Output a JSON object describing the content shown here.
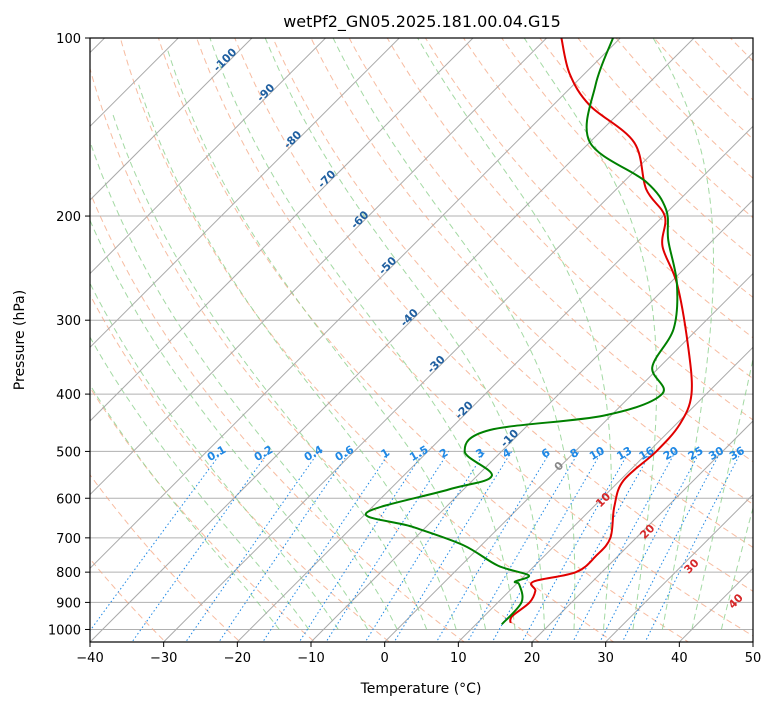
{
  "chart_data": {
    "type": "line",
    "title": "wetPf2_GN05.2025.181.00.04.G15",
    "xlabel": "Temperature (°C)",
    "ylabel": "Pressure (hPa)",
    "xlim": [
      -40,
      50
    ],
    "ylim": [
      1050,
      100
    ],
    "y_scale": "log",
    "skew": "skew-T",
    "grid": true,
    "x_ticks": [
      "−40",
      "−30",
      "−20",
      "−10",
      "0",
      "10",
      "20",
      "30",
      "40",
      "50"
    ],
    "y_ticks": [
      "100",
      "200",
      "300",
      "400",
      "500",
      "600",
      "700",
      "800",
      "900",
      "1000"
    ],
    "isotherm_labels": [
      "-100",
      "-90",
      "-80",
      "-70",
      "-60",
      "-50",
      "-40",
      "-30",
      "-20",
      "-10"
    ],
    "mixing_ratio_labels": [
      "0.1",
      "0.2",
      "0.4",
      "0.6",
      "1",
      "1.5",
      "2",
      "3",
      "4",
      "6",
      "8",
      "10",
      "13",
      "16",
      "20",
      "25",
      "30",
      "36"
    ],
    "moist_adiabat_labels": [
      "0",
      "10",
      "20",
      "30",
      "40"
    ],
    "colors": {
      "temperature": "#e00000",
      "dewpoint": "#008000",
      "isotherm": "#aaaaaa",
      "dry_adiabat": "#f4a582",
      "moist_adiabat": "#8ccf8c",
      "mixing_ratio": "#1e88e5",
      "isotherm_label": "#1f5fa0",
      "mixing_label": "#1e88e5",
      "moist_label": "#d62728"
    },
    "series": [
      {
        "key": "temperature",
        "points": [
          [
            14.5,
            975
          ],
          [
            13.8,
            950
          ],
          [
            14.3,
            900
          ],
          [
            13.5,
            860
          ],
          [
            12.0,
            830
          ],
          [
            16.5,
            800
          ],
          [
            17.0,
            750
          ],
          [
            16.5,
            700
          ],
          [
            12.8,
            620
          ],
          [
            10.5,
            560
          ],
          [
            11.0,
            500
          ],
          [
            10.5,
            450
          ],
          [
            8.0,
            400
          ],
          [
            0.8,
            330
          ],
          [
            -9.0,
            260
          ],
          [
            -16.0,
            225
          ],
          [
            -19.8,
            200
          ],
          [
            -26.0,
            180
          ],
          [
            -34.0,
            150
          ],
          [
            -45.0,
            130
          ],
          [
            -52.0,
            115
          ],
          [
            -58.0,
            100
          ]
        ]
      },
      {
        "key": "dewpoint",
        "points": [
          [
            13.5,
            980
          ],
          [
            13.2,
            900
          ],
          [
            10.5,
            840
          ],
          [
            9.5,
            830
          ],
          [
            10.5,
            810
          ],
          [
            5.0,
            780
          ],
          [
            -2.5,
            720
          ],
          [
            -12.0,
            670
          ],
          [
            -20.0,
            635
          ],
          [
            -12.0,
            580
          ],
          [
            -8.0,
            550
          ],
          [
            -15.0,
            500
          ],
          [
            -14.5,
            460
          ],
          [
            -1.0,
            435
          ],
          [
            4.0,
            400
          ],
          [
            -1.0,
            360
          ],
          [
            -3.3,
            310
          ],
          [
            -9.0,
            260
          ],
          [
            -16.0,
            220
          ],
          [
            -20.5,
            195
          ],
          [
            -27.0,
            175
          ],
          [
            -40.0,
            150
          ],
          [
            -47.0,
            120
          ],
          [
            -51.0,
            100
          ]
        ]
      }
    ]
  }
}
